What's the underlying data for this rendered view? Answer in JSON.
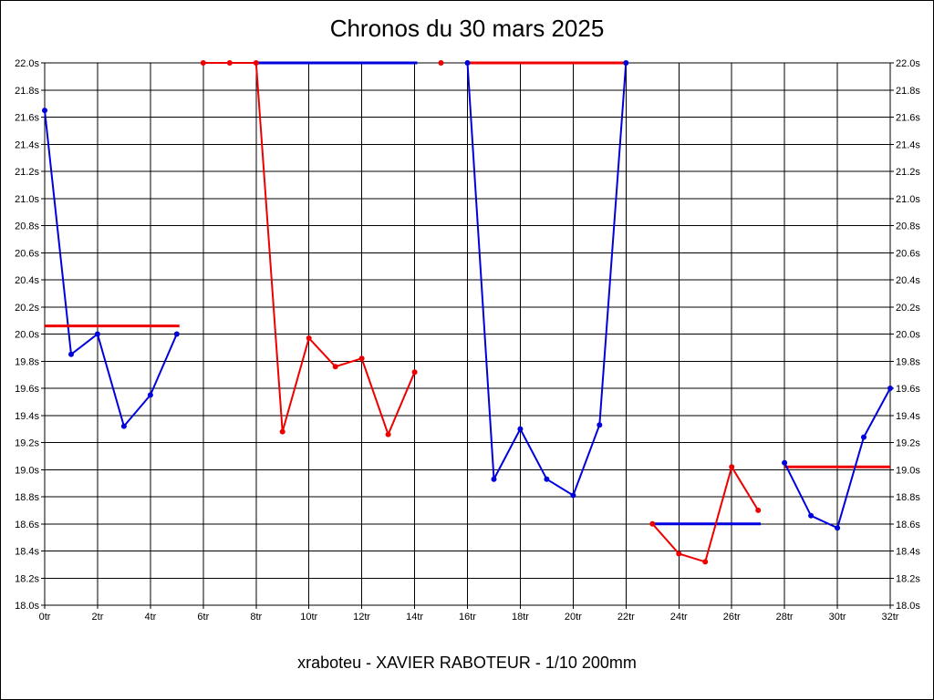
{
  "title": "Chronos du 30 mars 2025",
  "footer": "xraboteu - XAVIER RABOTEUR - 1/10 200mm",
  "colors": {
    "blue": "#0000dd",
    "red": "#ee0000",
    "grid": "#000000",
    "text": "#000000",
    "background": "#ffffff"
  },
  "chart_data": {
    "type": "line",
    "title": "Chronos du 30 mars 2025",
    "subtitle": "xraboteu - XAVIER RABOTEUR - 1/10 200mm",
    "xlabel": "",
    "ylabel": "",
    "xlim": [
      0,
      32
    ],
    "ylim": [
      18.0,
      22.0
    ],
    "x_tick_step": 2,
    "y_tick_step": 0.2,
    "x_tick_labels": [
      "0tr",
      "2tr",
      "4tr",
      "6tr",
      "8tr",
      "10tr",
      "12tr",
      "14tr",
      "16tr",
      "18tr",
      "20tr",
      "22tr",
      "24tr",
      "26tr",
      "28tr",
      "30tr",
      "32tr"
    ],
    "y_tick_labels": [
      "18.0s",
      "18.2s",
      "18.4s",
      "18.6s",
      "18.8s",
      "19.0s",
      "19.2s",
      "19.4s",
      "19.6s",
      "19.8s",
      "20.0s",
      "20.2s",
      "20.4s",
      "20.6s",
      "20.8s",
      "21.0s",
      "21.2s",
      "21.4s",
      "21.6s",
      "21.8s",
      "22.0s"
    ],
    "grid": true,
    "legend": false,
    "series": [
      {
        "name": "stint-1-laps",
        "color": "blue",
        "kind": "line",
        "points": [
          [
            0,
            21.65
          ],
          [
            1,
            19.85
          ],
          [
            2,
            20.0
          ],
          [
            3,
            19.32
          ],
          [
            4,
            19.55
          ],
          [
            5,
            20.0
          ]
        ]
      },
      {
        "name": "stint-1-average",
        "color": "red",
        "kind": "hline",
        "y": 20.06,
        "x1": 0,
        "x2": 5.1
      },
      {
        "name": "stint-2-average",
        "color": "blue",
        "kind": "hline",
        "y": 22.0,
        "x1": 7.9,
        "x2": 14.1
      },
      {
        "name": "stint-2-laps",
        "color": "red",
        "kind": "line",
        "points": [
          [
            6,
            22.0
          ],
          [
            7,
            22.0
          ],
          [
            8,
            22.0
          ],
          [
            9,
            19.28
          ],
          [
            10,
            19.97
          ],
          [
            11,
            19.76
          ],
          [
            12,
            19.82
          ],
          [
            13,
            19.26
          ],
          [
            14,
            19.72
          ]
        ]
      },
      {
        "name": "stint-2-clipped-lap",
        "color": "red",
        "kind": "points",
        "points": [
          [
            15,
            22.0
          ]
        ]
      },
      {
        "name": "stint-3-average",
        "color": "red",
        "kind": "hline",
        "y": 22.0,
        "x1": 16,
        "x2": 22
      },
      {
        "name": "stint-3-laps",
        "color": "blue",
        "kind": "line",
        "points": [
          [
            16,
            22.0
          ],
          [
            17,
            18.93
          ],
          [
            18,
            19.3
          ],
          [
            19,
            18.93
          ],
          [
            20,
            18.81
          ],
          [
            21,
            19.33
          ],
          [
            22,
            22.0
          ]
        ]
      },
      {
        "name": "stint-4-average",
        "color": "blue",
        "kind": "hline",
        "y": 18.6,
        "x1": 23,
        "x2": 27.1
      },
      {
        "name": "stint-4-laps",
        "color": "red",
        "kind": "line",
        "points": [
          [
            23,
            18.6
          ],
          [
            24,
            18.38
          ],
          [
            25,
            18.32
          ],
          [
            26,
            19.02
          ],
          [
            27,
            18.7
          ]
        ]
      },
      {
        "name": "stint-5-average",
        "color": "red",
        "kind": "hline",
        "y": 19.02,
        "x1": 28,
        "x2": 32
      },
      {
        "name": "stint-5-laps",
        "color": "blue",
        "kind": "line",
        "points": [
          [
            28,
            19.05
          ],
          [
            29,
            18.66
          ],
          [
            30,
            18.57
          ],
          [
            31,
            19.24
          ],
          [
            32,
            19.6
          ]
        ]
      }
    ]
  }
}
